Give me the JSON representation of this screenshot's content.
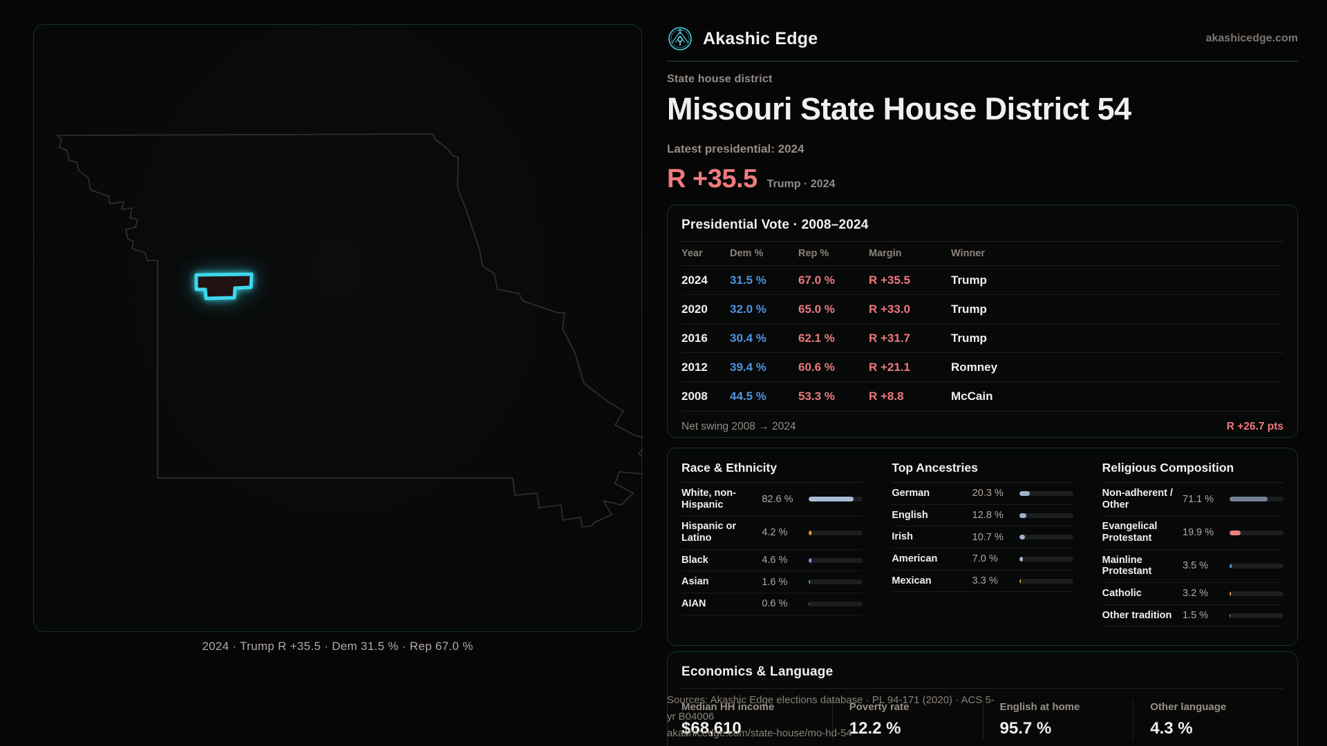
{
  "brand": {
    "name": "Akashic Edge",
    "domain": "akashicedge.com"
  },
  "page": {
    "eyebrow": "State house district",
    "title": "Missouri State House District 54",
    "latest_label": "Latest presidential: 2024",
    "headline_margin": "R +35.5",
    "headline_context": "Trump · 2024"
  },
  "map": {
    "caption": "2024 · Trump R +35.5 · Dem 31.5 % · Rep 67.0 %",
    "district_color": "#3cd8ec",
    "state_outline_color": "#323232"
  },
  "presidential_table": {
    "title": "Presidential Vote · 2008–2024",
    "columns": {
      "year": "Year",
      "dem": "Dem %",
      "rep": "Rep %",
      "margin": "Margin",
      "winner": "Winner"
    },
    "rows": [
      {
        "year": "2024",
        "dem": "31.5 %",
        "rep": "67.0 %",
        "margin": "R +35.5",
        "winner": "Trump"
      },
      {
        "year": "2020",
        "dem": "32.0 %",
        "rep": "65.0 %",
        "margin": "R +33.0",
        "winner": "Trump"
      },
      {
        "year": "2016",
        "dem": "30.4 %",
        "rep": "62.1 %",
        "margin": "R +31.7",
        "winner": "Trump"
      },
      {
        "year": "2012",
        "dem": "39.4 %",
        "rep": "60.6 %",
        "margin": "R +21.1",
        "winner": "Romney"
      },
      {
        "year": "2008",
        "dem": "44.5 %",
        "rep": "53.3 %",
        "margin": "R +8.8",
        "winner": "McCain"
      }
    ],
    "net_swing_label": "Net swing 2008 → 2024",
    "net_swing_value": "R +26.7 pts",
    "colors": {
      "dem": "#4f94e0",
      "rep": "#ee797d"
    }
  },
  "demographics": {
    "race": {
      "title": "Race & Ethnicity",
      "rows": [
        {
          "label": "White, non-Hispanic",
          "value": "82.6 %",
          "pct": 82.6,
          "color": "#a9bed6"
        },
        {
          "label": "Hispanic or Latino",
          "value": "4.2 %",
          "pct": 4.2,
          "color": "#e8a020"
        },
        {
          "label": "Black",
          "value": "4.6 %",
          "pct": 4.6,
          "color": "#9d82ea"
        },
        {
          "label": "Asian",
          "value": "1.6 %",
          "pct": 1.6,
          "color": "#2fb38b"
        },
        {
          "label": "AIAN",
          "value": "0.6 %",
          "pct": 0.6,
          "color": "#c07a2d"
        }
      ]
    },
    "ancestries": {
      "title": "Top Ancestries",
      "rows": [
        {
          "label": "German",
          "value": "20.3 %",
          "pct": 20.3,
          "color": "#9fb3c9"
        },
        {
          "label": "English",
          "value": "12.8 %",
          "pct": 12.8,
          "color": "#9fb3c9"
        },
        {
          "label": "Irish",
          "value": "10.7 %",
          "pct": 10.7,
          "color": "#9fb3c9"
        },
        {
          "label": "American",
          "value": "7.0 %",
          "pct": 7.0,
          "color": "#9fb3c9"
        },
        {
          "label": "Mexican",
          "value": "3.3 %",
          "pct": 3.3,
          "color": "#e8a020"
        }
      ]
    },
    "religion": {
      "title": "Religious Composition",
      "rows": [
        {
          "label": "Non-adherent / Other",
          "value": "71.1 %",
          "pct": 71.1,
          "color": "#768093"
        },
        {
          "label": "Evangelical Protestant",
          "value": "19.9 %",
          "pct": 19.9,
          "color": "#e87e80"
        },
        {
          "label": "Mainline Protestant",
          "value": "3.5 %",
          "pct": 3.5,
          "color": "#4f94e0"
        },
        {
          "label": "Catholic",
          "value": "3.2 %",
          "pct": 3.2,
          "color": "#e0b23f"
        },
        {
          "label": "Other tradition",
          "value": "1.5 %",
          "pct": 1.5,
          "color": "#b9bcbf"
        }
      ]
    }
  },
  "economics": {
    "title": "Economics & Language",
    "stats": [
      {
        "label": "Median HH income",
        "value": "$68,610"
      },
      {
        "label": "Poverty rate",
        "value": "12.2 %"
      },
      {
        "label": "English at home",
        "value": "95.7 %"
      },
      {
        "label": "Other language",
        "value": "4.3 %"
      }
    ]
  },
  "sources": {
    "line1": "Sources: Akashic Edge elections database · PL 94-171 (2020) · ACS 5-yr B04006",
    "line2": "akashicedge.com/state-house/mo-hd-54"
  }
}
